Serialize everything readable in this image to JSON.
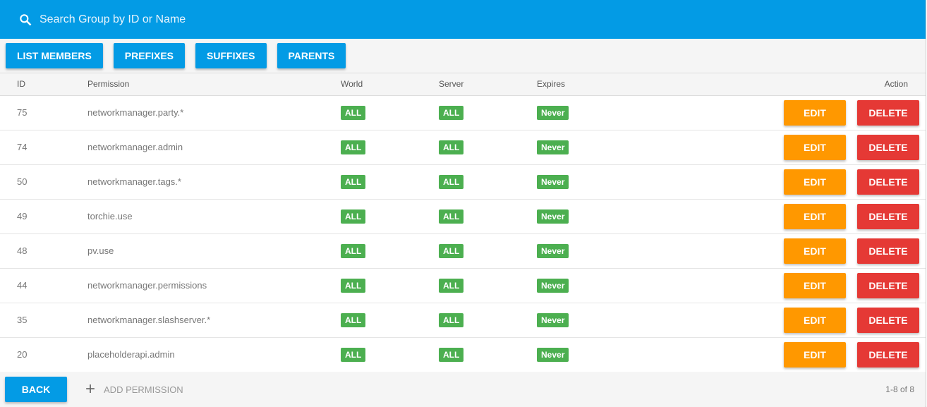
{
  "search": {
    "placeholder": "Search Group by ID or Name"
  },
  "toolbar": {
    "list_members": "LIST MEMBERS",
    "prefixes": "PREFIXES",
    "suffixes": "SUFFIXES",
    "parents": "PARENTS"
  },
  "columns": {
    "id": "ID",
    "permission": "Permission",
    "world": "World",
    "server": "Server",
    "expires": "Expires",
    "action": "Action"
  },
  "rows": [
    {
      "id": "75",
      "permission": "networkmanager.party.*",
      "world": "ALL",
      "server": "ALL",
      "expires": "Never"
    },
    {
      "id": "74",
      "permission": "networkmanager.admin",
      "world": "ALL",
      "server": "ALL",
      "expires": "Never"
    },
    {
      "id": "50",
      "permission": "networkmanager.tags.*",
      "world": "ALL",
      "server": "ALL",
      "expires": "Never"
    },
    {
      "id": "49",
      "permission": "torchie.use",
      "world": "ALL",
      "server": "ALL",
      "expires": "Never"
    },
    {
      "id": "48",
      "permission": "pv.use",
      "world": "ALL",
      "server": "ALL",
      "expires": "Never"
    },
    {
      "id": "44",
      "permission": "networkmanager.permissions",
      "world": "ALL",
      "server": "ALL",
      "expires": "Never"
    },
    {
      "id": "35",
      "permission": "networkmanager.slashserver.*",
      "world": "ALL",
      "server": "ALL",
      "expires": "Never"
    },
    {
      "id": "20",
      "permission": "placeholderapi.admin",
      "world": "ALL",
      "server": "ALL",
      "expires": "Never"
    }
  ],
  "row_actions": {
    "edit": "EDIT",
    "delete": "DELETE"
  },
  "footer": {
    "back": "BACK",
    "add_permission": "ADD PERMISSION",
    "add_icon": "+",
    "pagination": "1-8 of 8"
  },
  "colors": {
    "primary": "#039be5",
    "edit": "#ff9800",
    "delete": "#e53935",
    "badge": "#4caf50"
  }
}
